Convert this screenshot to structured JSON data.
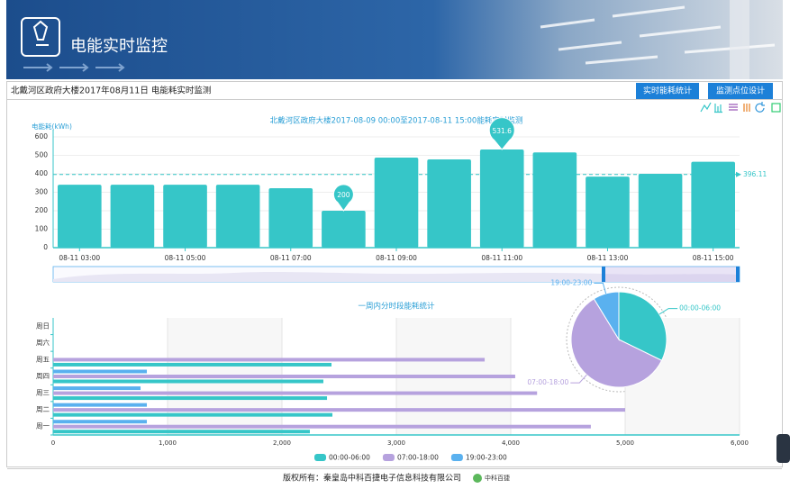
{
  "header": {
    "title": "电能实时监控"
  },
  "toolbar": {
    "breadcrumb": "北戴河区政府大楼2017年08月11日 电能耗实时监测",
    "buttons": [
      "实时能耗统计",
      "监测点位设计"
    ]
  },
  "chart_data": [
    {
      "type": "bar",
      "title": "北戴河区政府大楼2017-08-09 00:00至2017-08-11 15:00能耗实时监测",
      "y_label": "电能耗(kWh)",
      "categories": [
        "08-11 03:00",
        null,
        "08-11 05:00",
        null,
        "08-11 07:00",
        null,
        "08-11 09:00",
        null,
        "08-11 11:00",
        null,
        "08-11 13:00",
        null,
        "08-11 15:00"
      ],
      "values": [
        341,
        341,
        341,
        341,
        322,
        200,
        488,
        478,
        531.6,
        516,
        385,
        400,
        465
      ],
      "color": "#36c6c8",
      "ylim": [
        0,
        600
      ],
      "yticks": [
        0,
        100,
        200,
        300,
        400,
        500,
        600
      ],
      "grid": true,
      "mark_line": 396.11
    },
    {
      "type": "hbar",
      "title": "一周内分时段能耗统计",
      "categories": [
        "周一",
        "周二",
        "周三",
        "周四",
        "周五",
        "周六",
        "周日"
      ],
      "series": [
        {
          "name": "00:00-06:00",
          "color": "#36c6c8",
          "values": [
            2244,
            2441,
            2394,
            2362,
            2433,
            0,
            0
          ]
        },
        {
          "name": "07:00-18:00",
          "color": "#b6a2de",
          "values": [
            4700,
            5000,
            4230,
            4039,
            3772,
            0,
            0
          ]
        },
        {
          "name": "19:00-23:00",
          "color": "#5ab1ef",
          "values": [
            819,
            819,
            764,
            819,
            0,
            0,
            0
          ]
        }
      ],
      "xlim": [
        0,
        6000
      ],
      "xticks": [
        0,
        {
          "value": 1000,
          "label": "1,000"
        },
        {
          "value": 2000,
          "label": "2,000"
        },
        {
          "value": 3000,
          "label": "3,000"
        },
        {
          "value": 4000,
          "label": "4,000"
        },
        {
          "value": 5000,
          "label": "5,000"
        },
        {
          "value": 6000,
          "label": "6,000"
        }
      ],
      "grid": true,
      "legend": "bottom"
    },
    {
      "type": "pie",
      "categories": [
        "00:00-06:00",
        "07:00-18:00",
        "19:00-23:00"
      ],
      "values": [
        11874,
        21741,
        3221
      ],
      "colors": [
        "#36c6c8",
        "#b6a2de",
        "#5ab1ef"
      ]
    }
  ],
  "footer": {
    "copyright": "版权所有：秦皇岛中科百捷电子信息科技有限公司",
    "logo_text": "中科百捷"
  }
}
